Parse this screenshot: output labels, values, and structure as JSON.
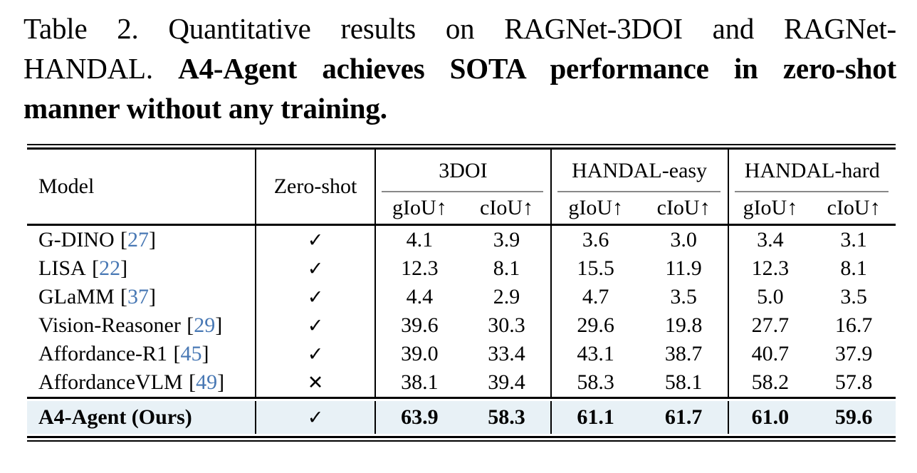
{
  "caption": {
    "label": "Table 2.",
    "lines": [
      {
        "normal": "Table 2.  Quantitative results on RAGNet-3DOI and RAGNet-",
        "bold": ""
      },
      {
        "normal": "HANDAL. ",
        "bold": "A4-Agent achieves SOTA performance in zero-shot"
      },
      {
        "normal": "",
        "bold": "manner without any training."
      }
    ]
  },
  "table": {
    "header": {
      "model": "Model",
      "zero_shot": "Zero-shot"
    },
    "groups": [
      "3DOI",
      "HANDAL-easy",
      "HANDAL-hard"
    ],
    "subheaders": [
      "gIoU↑",
      "cIoU↑",
      "gIoU↑",
      "cIoU↑",
      "gIoU↑",
      "cIoU↑"
    ],
    "cite_open": "[",
    "cite_close": "]",
    "check_mark": "✓",
    "cross_mark": "✕",
    "rows": [
      {
        "model": "G-DINO",
        "cite": "27",
        "zero_shot": "✓",
        "values": [
          "4.1",
          "3.9",
          "3.6",
          "3.0",
          "3.4",
          "3.1"
        ]
      },
      {
        "model": "LISA",
        "cite": "22",
        "zero_shot": "✓",
        "values": [
          "12.3",
          "8.1",
          "15.5",
          "11.9",
          "12.3",
          "8.1"
        ]
      },
      {
        "model": "GLaMM",
        "cite": "37",
        "zero_shot": "✓",
        "values": [
          "4.4",
          "2.9",
          "4.7",
          "3.5",
          "5.0",
          "3.5"
        ]
      },
      {
        "model": "Vision-Reasoner",
        "cite": "29",
        "zero_shot": "✓",
        "values": [
          "39.6",
          "30.3",
          "29.6",
          "19.8",
          "27.7",
          "16.7"
        ]
      },
      {
        "model": "Affordance-R1",
        "cite": "45",
        "zero_shot": "✓",
        "values": [
          "39.0",
          "33.4",
          "43.1",
          "38.7",
          "40.7",
          "37.9"
        ]
      },
      {
        "model": "AffordanceVLM",
        "cite": "49",
        "zero_shot": "✕",
        "values": [
          "38.1",
          "39.4",
          "58.3",
          "58.1",
          "58.2",
          "57.8"
        ]
      }
    ],
    "highlight_row": {
      "model": "A4-Agent (Ours)",
      "zero_shot": "✓",
      "values": [
        "63.9",
        "58.3",
        "61.1",
        "61.7",
        "61.0",
        "59.6"
      ]
    }
  },
  "colors": {
    "citation_blue": "#4878b4",
    "highlight_bg": "#e8f1f6",
    "rule_black": "#000000",
    "cmidrule_gray": "#888888"
  }
}
